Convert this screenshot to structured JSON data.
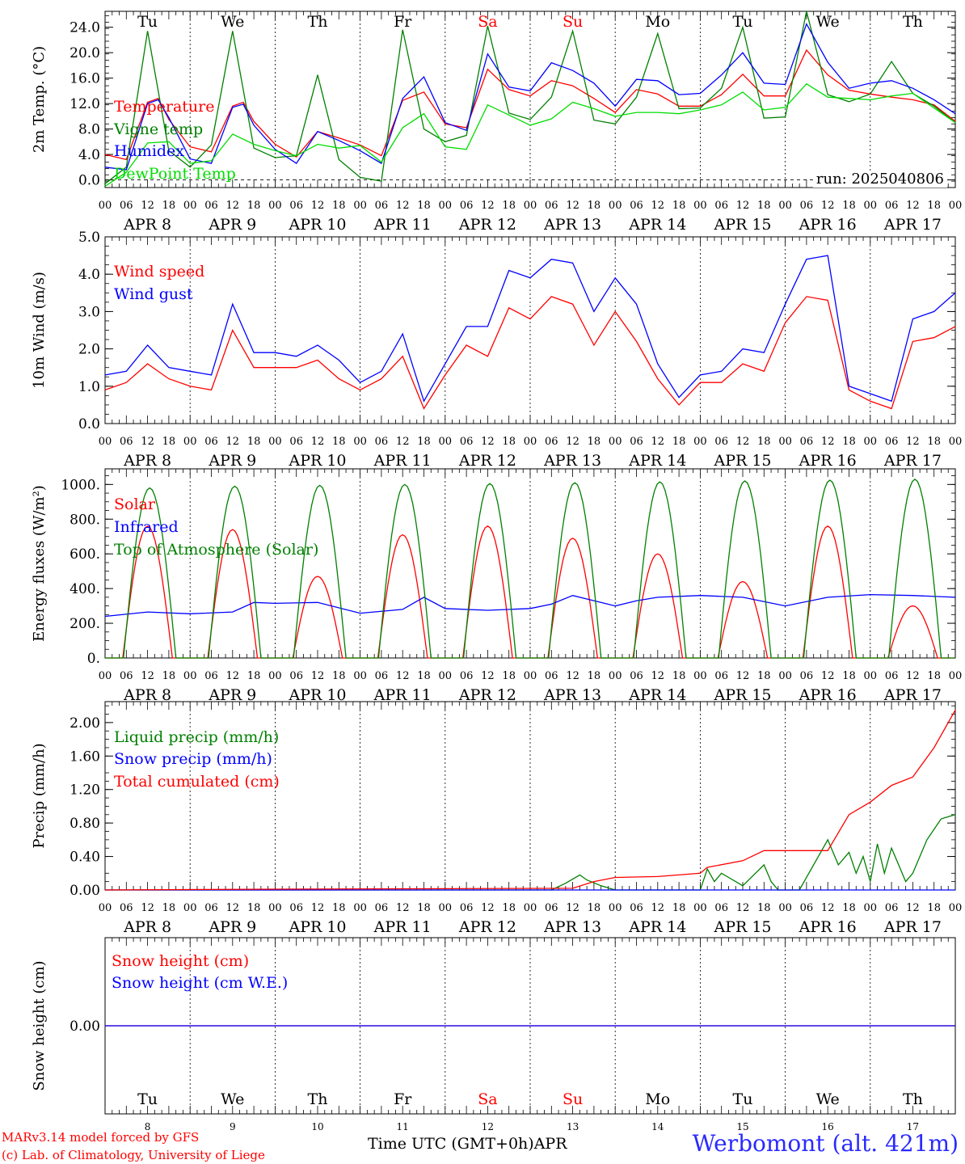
{
  "run_label": "run: 2025040806",
  "footer": {
    "credit_line1": "MARv3.14 model forced by GFS",
    "credit_line2": "(c) Lab. of Climatology, University of Liege",
    "x_title": "Time UTC (GMT+0h)",
    "month": "APR",
    "station": "Werbomont (alt. 421m)"
  },
  "days": [
    {
      "abbr": "Tu",
      "date": "8",
      "weekend": false
    },
    {
      "abbr": "We",
      "date": "9",
      "weekend": false
    },
    {
      "abbr": "Th",
      "date": "10",
      "weekend": false
    },
    {
      "abbr": "Fr",
      "date": "11",
      "weekend": false
    },
    {
      "abbr": "Sa",
      "date": "12",
      "weekend": true
    },
    {
      "abbr": "Su",
      "date": "13",
      "weekend": true
    },
    {
      "abbr": "Mo",
      "date": "14",
      "weekend": false
    },
    {
      "abbr": "Tu",
      "date": "15",
      "weekend": false
    },
    {
      "abbr": "We",
      "date": "16",
      "weekend": false
    },
    {
      "abbr": "Th",
      "date": "17",
      "weekend": false
    }
  ],
  "hour_ticks": [
    "00",
    "06",
    "12",
    "18"
  ],
  "last_tick": "00",
  "colors": {
    "red": "#ff0000",
    "green": "#008000",
    "blue": "#0000ff",
    "light_green": "#00dd00",
    "weekend": "#ff0000"
  },
  "chart_data": [
    {
      "type": "line",
      "ylabel": "2m Temp. (°C)",
      "ylim": [
        -1.2,
        26.5
      ],
      "yticks": [
        "0.0",
        "4.0",
        "8.0",
        "12.0",
        "16.0",
        "20.0",
        "24.0"
      ],
      "ytick_values": [
        0,
        4,
        8,
        12,
        16,
        20,
        24
      ],
      "x_unit": "hours since APR 8 00 UTC",
      "series": [
        {
          "name": "Temperature",
          "color": "#ff0000",
          "x": [
            0,
            6,
            12,
            15,
            18,
            24,
            30,
            36,
            39,
            42,
            48,
            54,
            60,
            66,
            72,
            78,
            84,
            90,
            96,
            102,
            108,
            114,
            120,
            126,
            132,
            138,
            144,
            150,
            156,
            162,
            168,
            174,
            180,
            186,
            192,
            198,
            204,
            210,
            216,
            222,
            228,
            234,
            240
          ],
          "y": [
            4.0,
            3.2,
            12.2,
            12.8,
            9.5,
            5.2,
            4.4,
            11.6,
            12.2,
            9.2,
            5.6,
            3.6,
            7.6,
            6.6,
            5.5,
            3.8,
            12.5,
            13.8,
            8.8,
            8.2,
            17.4,
            14.2,
            13.2,
            15.6,
            14.8,
            12.8,
            10.6,
            14.2,
            13.5,
            11.6,
            11.6,
            13.4,
            16.6,
            13.2,
            13.2,
            20.4,
            16.5,
            14.1,
            13.5,
            13.0,
            12.6,
            11.8,
            9.2
          ]
        },
        {
          "name": "Vigne temp",
          "color": "#008000",
          "x": [
            0,
            6,
            12,
            18,
            24,
            30,
            36,
            42,
            48,
            54,
            60,
            66,
            72,
            78,
            84,
            90,
            96,
            102,
            108,
            114,
            120,
            126,
            132,
            138,
            144,
            150,
            156,
            162,
            168,
            174,
            180,
            186,
            192,
            198,
            204,
            210,
            216,
            222,
            228,
            234,
            240
          ],
          "y": [
            -0.6,
            2.0,
            23.4,
            4.6,
            2.0,
            5.5,
            23.4,
            5.0,
            3.5,
            3.8,
            16.5,
            3.2,
            0.4,
            -0.2,
            23.6,
            8.0,
            6.0,
            7.0,
            24.2,
            10.5,
            9.5,
            13.0,
            23.4,
            9.4,
            8.8,
            13.0,
            23.0,
            11.2,
            11.3,
            14.4,
            24.0,
            9.7,
            9.9,
            26.5,
            13.4,
            12.3,
            13.5,
            18.6,
            13.6,
            11.6,
            9.0
          ]
        },
        {
          "name": "Humidex",
          "color": "#0000ff",
          "x": [
            0,
            6,
            12,
            15,
            18,
            24,
            30,
            36,
            39,
            42,
            48,
            54,
            60,
            66,
            72,
            78,
            84,
            90,
            96,
            102,
            108,
            114,
            120,
            126,
            132,
            138,
            144,
            150,
            156,
            162,
            168,
            174,
            180,
            186,
            192,
            198,
            204,
            210,
            216,
            222,
            228,
            234,
            240
          ],
          "y": [
            2.0,
            1.6,
            12.0,
            12.6,
            9.8,
            3.3,
            2.6,
            11.4,
            11.9,
            8.6,
            4.8,
            2.6,
            7.6,
            6.2,
            4.6,
            2.6,
            12.8,
            16.2,
            9.0,
            7.8,
            19.8,
            14.6,
            14.0,
            18.4,
            17.2,
            15.2,
            11.6,
            15.8,
            15.6,
            13.4,
            13.6,
            16.5,
            20.0,
            15.2,
            15.0,
            24.5,
            18.5,
            14.4,
            15.2,
            15.6,
            14.4,
            12.6,
            10.4
          ]
        },
        {
          "name": "DewPoint Temp",
          "color": "#00dd00",
          "x": [
            0,
            6,
            12,
            18,
            24,
            30,
            36,
            42,
            48,
            54,
            60,
            66,
            72,
            78,
            84,
            90,
            96,
            102,
            108,
            114,
            120,
            126,
            132,
            138,
            144,
            150,
            156,
            162,
            168,
            174,
            180,
            186,
            192,
            198,
            204,
            210,
            216,
            222,
            228,
            234,
            240
          ],
          "y": [
            -1.0,
            1.2,
            5.8,
            6.0,
            2.6,
            3.0,
            7.2,
            5.6,
            4.6,
            3.8,
            5.6,
            5.0,
            5.4,
            2.8,
            8.2,
            10.4,
            5.2,
            4.8,
            11.8,
            10.2,
            8.6,
            9.6,
            12.2,
            11.2,
            10.0,
            10.6,
            10.6,
            10.4,
            11.0,
            11.8,
            13.8,
            11.0,
            11.4,
            15.1,
            13.0,
            12.8,
            12.6,
            13.2,
            13.6,
            11.3,
            9.0
          ]
        }
      ]
    },
    {
      "type": "line",
      "ylabel": "10m Wind (m/s)",
      "ylim": [
        0,
        5.0
      ],
      "yticks": [
        "0.0",
        "1.0",
        "2.0",
        "3.0",
        "4.0",
        "5.0"
      ],
      "ytick_values": [
        0,
        1,
        2,
        3,
        4,
        5
      ],
      "series": [
        {
          "name": "Wind speed",
          "color": "#ff0000",
          "x": [
            0,
            6,
            12,
            18,
            24,
            30,
            36,
            42,
            48,
            54,
            60,
            66,
            72,
            78,
            84,
            90,
            96,
            102,
            108,
            114,
            120,
            126,
            132,
            138,
            144,
            150,
            156,
            162,
            168,
            174,
            180,
            186,
            192,
            198,
            204,
            210,
            216,
            222,
            228,
            234,
            240
          ],
          "y": [
            0.9,
            1.1,
            1.6,
            1.2,
            1.0,
            0.9,
            2.5,
            1.5,
            1.5,
            1.5,
            1.7,
            1.2,
            0.9,
            1.2,
            1.8,
            0.4,
            1.3,
            2.1,
            1.8,
            3.1,
            2.8,
            3.4,
            3.2,
            2.1,
            3.0,
            2.2,
            1.2,
            0.5,
            1.1,
            1.1,
            1.6,
            1.4,
            2.7,
            3.4,
            3.3,
            0.9,
            0.6,
            0.4,
            2.2,
            2.3,
            2.6
          ]
        },
        {
          "name": "Wind gust",
          "color": "#0000ff",
          "x": [
            0,
            6,
            12,
            18,
            24,
            30,
            36,
            42,
            48,
            54,
            60,
            66,
            72,
            78,
            84,
            90,
            96,
            102,
            108,
            114,
            120,
            126,
            132,
            138,
            144,
            150,
            156,
            162,
            168,
            174,
            180,
            186,
            192,
            198,
            204,
            210,
            216,
            222,
            228,
            234,
            240
          ],
          "y": [
            1.3,
            1.4,
            2.1,
            1.5,
            1.4,
            1.3,
            3.2,
            1.9,
            1.9,
            1.8,
            2.1,
            1.7,
            1.1,
            1.4,
            2.4,
            0.6,
            1.6,
            2.6,
            2.6,
            4.1,
            3.9,
            4.4,
            4.3,
            3.0,
            3.9,
            3.2,
            1.6,
            0.7,
            1.3,
            1.4,
            2.0,
            1.9,
            3.2,
            4.4,
            4.5,
            1.0,
            0.8,
            0.6,
            2.8,
            3.0,
            3.5
          ]
        }
      ]
    },
    {
      "type": "line",
      "ylabel": "Energy fluxes (W/m²)",
      "ylim": [
        0,
        1090
      ],
      "yticks": [
        "0.",
        "200.",
        "400.",
        "600.",
        "800.",
        "1000."
      ],
      "ytick_values": [
        0,
        200,
        400,
        600,
        800,
        1000
      ],
      "series": [
        {
          "name": "Solar",
          "color": "#ff0000",
          "peak_hour": 12,
          "half_width": 7,
          "daily_peaks": [
            760,
            740,
            470,
            710,
            760,
            690,
            600,
            440,
            760,
            300
          ]
        },
        {
          "name": "Infrared",
          "color": "#0000ff",
          "x": [
            0,
            12,
            24,
            36,
            42,
            48,
            60,
            72,
            84,
            90,
            96,
            108,
            120,
            126,
            132,
            144,
            150,
            156,
            168,
            180,
            192,
            204,
            216,
            228,
            240
          ],
          "y": [
            240,
            265,
            255,
            265,
            320,
            315,
            320,
            258,
            280,
            350,
            285,
            275,
            285,
            310,
            360,
            300,
            330,
            350,
            360,
            350,
            300,
            350,
            365,
            360,
            350
          ]
        },
        {
          "name": "Top of Atmosphere (Solar)",
          "color": "#008000",
          "peak_hour": 12.6,
          "half_width": 7.4,
          "daily_peaks": [
            980,
            990,
            995,
            1000,
            1005,
            1010,
            1015,
            1020,
            1025,
            1030
          ]
        }
      ]
    },
    {
      "type": "line",
      "ylabel": "Precip (mm/h)",
      "ylim": [
        0,
        2.25
      ],
      "yticks": [
        "0.00",
        "0.40",
        "0.80",
        "1.20",
        "1.60",
        "2.00"
      ],
      "ytick_values": [
        0,
        0.4,
        0.8,
        1.2,
        1.6,
        2.0
      ],
      "series": [
        {
          "name": "Liquid precip (mm/h)",
          "color": "#008000",
          "x": [
            0,
            126,
            130,
            134,
            136,
            140,
            144,
            150,
            168,
            170,
            172,
            174,
            176,
            178,
            180,
            186,
            188,
            190,
            194,
            196,
            204,
            207,
            210,
            212,
            214,
            216,
            218,
            220,
            222,
            224,
            226,
            228,
            232,
            236,
            240
          ],
          "y": [
            0,
            0,
            0.08,
            0.18,
            0.12,
            0.05,
            0,
            0,
            0,
            0.25,
            0.1,
            0.2,
            0.15,
            0.1,
            0.05,
            0.3,
            0.1,
            0,
            0,
            0,
            0.6,
            0.3,
            0.45,
            0.2,
            0.4,
            0.1,
            0.55,
            0.2,
            0.5,
            0.3,
            0.1,
            0.2,
            0.6,
            0.85,
            0.9
          ]
        },
        {
          "name": "Snow precip (mm/h)",
          "color": "#0000ff",
          "x": [
            0,
            240
          ],
          "y": [
            0,
            0
          ]
        },
        {
          "name": "Total cumulated (cm)",
          "color": "#ff0000",
          "x": [
            0,
            48,
            132,
            138,
            144,
            156,
            168,
            170,
            180,
            186,
            204,
            210,
            216,
            222,
            228,
            234,
            240
          ],
          "y": [
            0,
            0.01,
            0.02,
            0.1,
            0.15,
            0.16,
            0.2,
            0.27,
            0.35,
            0.47,
            0.47,
            0.9,
            1.05,
            1.25,
            1.35,
            1.7,
            2.15
          ]
        }
      ]
    },
    {
      "type": "line",
      "ylabel": "Snow height (cm)",
      "ylim": [
        -1,
        1
      ],
      "yticks": [
        "0.00"
      ],
      "ytick_values": [
        0
      ],
      "series": [
        {
          "name": "Snow height (cm)",
          "color": "#ff0000",
          "x": [
            0,
            240
          ],
          "y": [
            0,
            0
          ]
        },
        {
          "name": "Snow height (cm W.E.)",
          "color": "#0000ff",
          "x": [
            0,
            240
          ],
          "y": [
            0,
            0
          ]
        }
      ]
    }
  ]
}
